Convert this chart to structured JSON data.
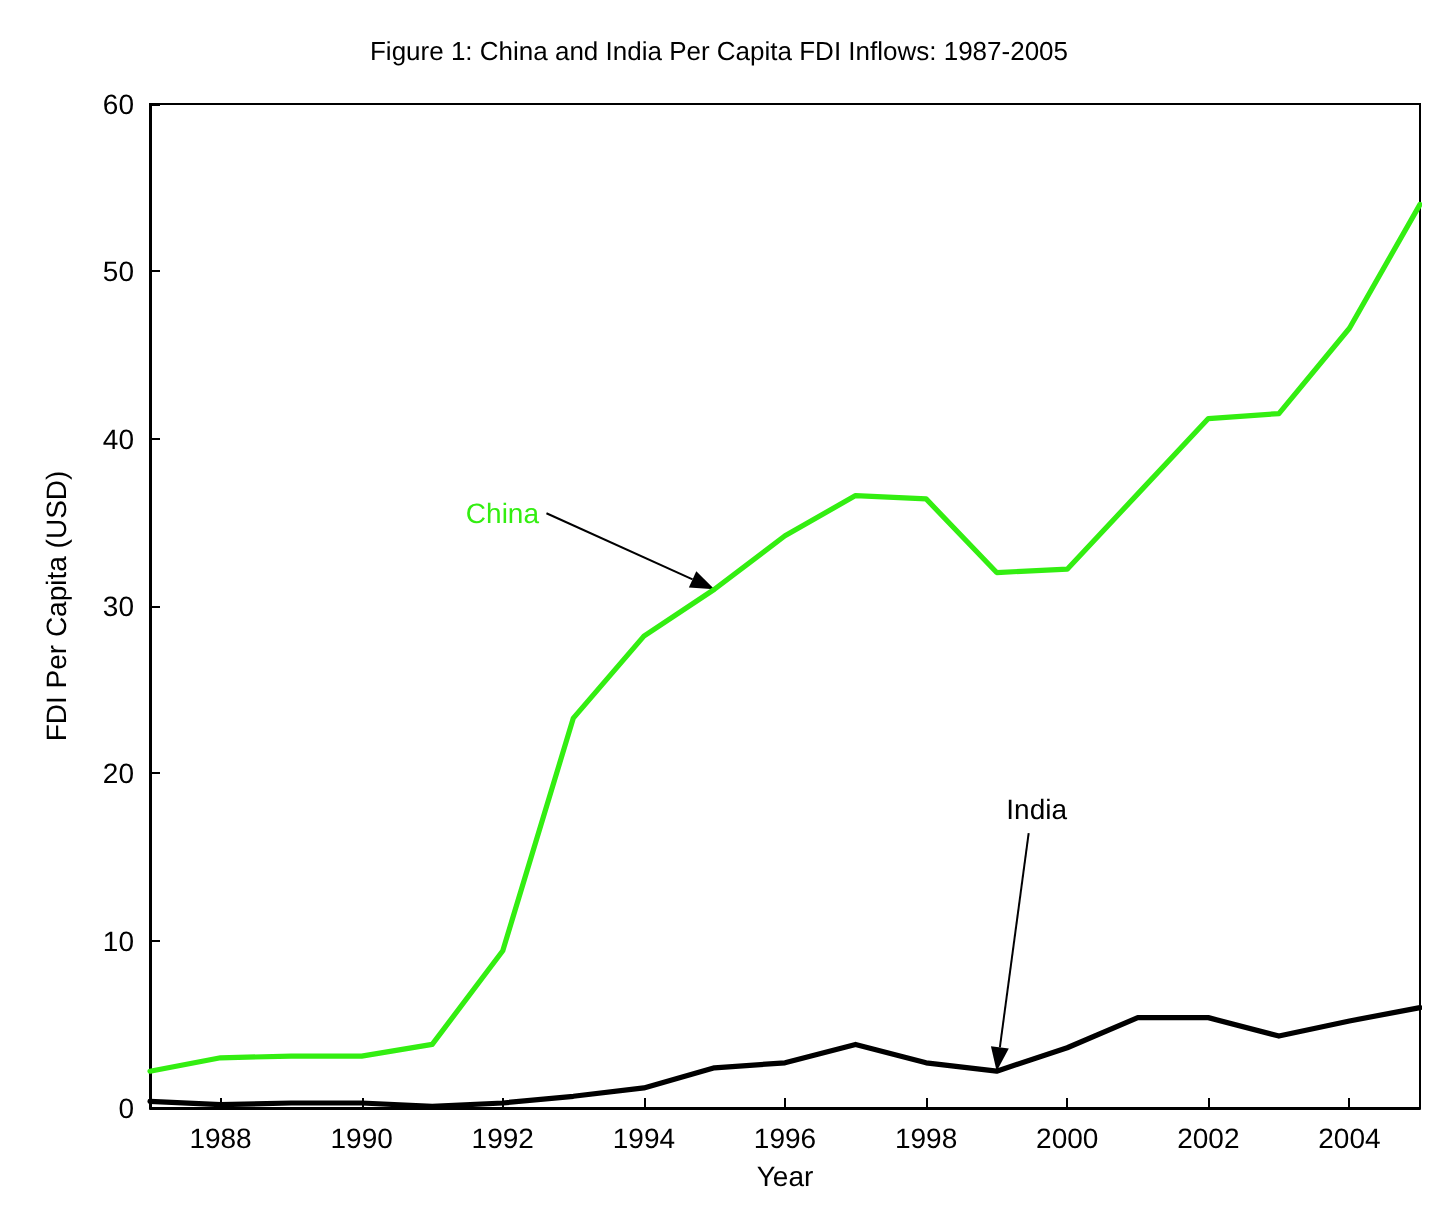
{
  "chart_data": {
    "type": "line",
    "title": "Figure 1: China and India Per Capita FDI Inflows: 1987-2005",
    "xlabel": "Year",
    "ylabel": "FDI Per Capita (USD)",
    "x": [
      1987,
      1988,
      1989,
      1990,
      1991,
      1992,
      1993,
      1994,
      1995,
      1996,
      1997,
      1998,
      1999,
      2000,
      2001,
      2002,
      2003,
      2004,
      2005
    ],
    "series": [
      {
        "name": "China",
        "color": "#33ee11",
        "values": [
          2.2,
          3.0,
          3.1,
          3.1,
          3.8,
          9.4,
          23.3,
          28.2,
          31.0,
          34.2,
          36.6,
          36.4,
          32.0,
          32.2,
          36.7,
          41.2,
          41.5,
          46.6,
          54.0
        ]
      },
      {
        "name": "India",
        "color": "#000000",
        "values": [
          0.4,
          0.2,
          0.3,
          0.3,
          0.1,
          0.3,
          0.7,
          1.2,
          2.4,
          2.7,
          3.8,
          2.7,
          2.2,
          3.6,
          5.4,
          5.4,
          4.3,
          5.2,
          6.0
        ]
      }
    ],
    "xlim": [
      1987,
      2005
    ],
    "xticks": [
      1988,
      1990,
      1992,
      1994,
      1996,
      1998,
      2000,
      2002,
      2004
    ],
    "ylim": [
      0,
      60
    ],
    "yticks": [
      0,
      10,
      20,
      30,
      40,
      50,
      60
    ],
    "grid": false,
    "marker": "none",
    "line_style": "solid"
  }
}
